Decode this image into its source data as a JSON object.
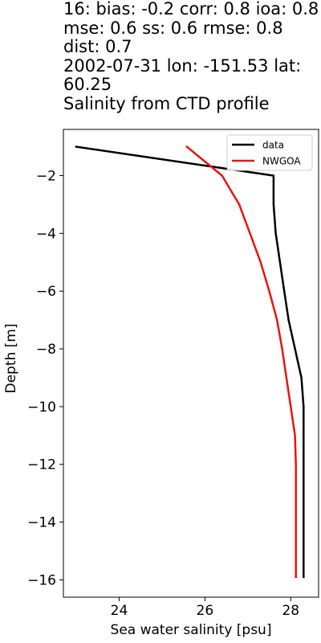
{
  "chart_data": {
    "type": "line",
    "title": "16: bias: -0.2  corr: 0.8  ioa: 0.8  mse: 0.6  ss: 0.6  rmse: 0.8  dist: 0.7\n2002-07-31 lon: -151.53 lat: 60.25\nSalinity from CTD profile",
    "xlabel": "Sea water salinity [psu]",
    "ylabel": "Depth [m]",
    "xlim": [
      22.7,
      28.65
    ],
    "ylim": [
      -16.6,
      -0.4
    ],
    "xticks": [
      24,
      26,
      28
    ],
    "yticks": [
      -2,
      -4,
      -6,
      -8,
      -10,
      -12,
      -14,
      -16
    ],
    "grid": false,
    "legend_position": "top-right",
    "series": [
      {
        "name": "data",
        "color": "#000000",
        "x": [
          23.0,
          27.6,
          27.6,
          27.65,
          27.75,
          27.85,
          27.95,
          28.1,
          28.25,
          28.3,
          28.3,
          28.3,
          28.3,
          28.3,
          28.3
        ],
        "y": [
          -1.0,
          -2.0,
          -3.0,
          -4.0,
          -5.0,
          -6.0,
          -7.0,
          -8.0,
          -9.0,
          -10.0,
          -11.0,
          -12.0,
          -13.0,
          -14.0,
          -15.9
        ]
      },
      {
        "name": "NWGOA",
        "color": "#e8140f",
        "x": [
          25.58,
          26.4,
          26.8,
          27.05,
          27.3,
          27.5,
          27.68,
          27.8,
          27.9,
          28.0,
          28.1,
          28.12,
          28.12,
          28.12
        ],
        "y": [
          -1.0,
          -2.0,
          -3.0,
          -4.0,
          -5.0,
          -6.0,
          -7.0,
          -8.0,
          -9.0,
          -10.0,
          -11.0,
          -12.0,
          -14.0,
          -15.9
        ]
      }
    ]
  }
}
